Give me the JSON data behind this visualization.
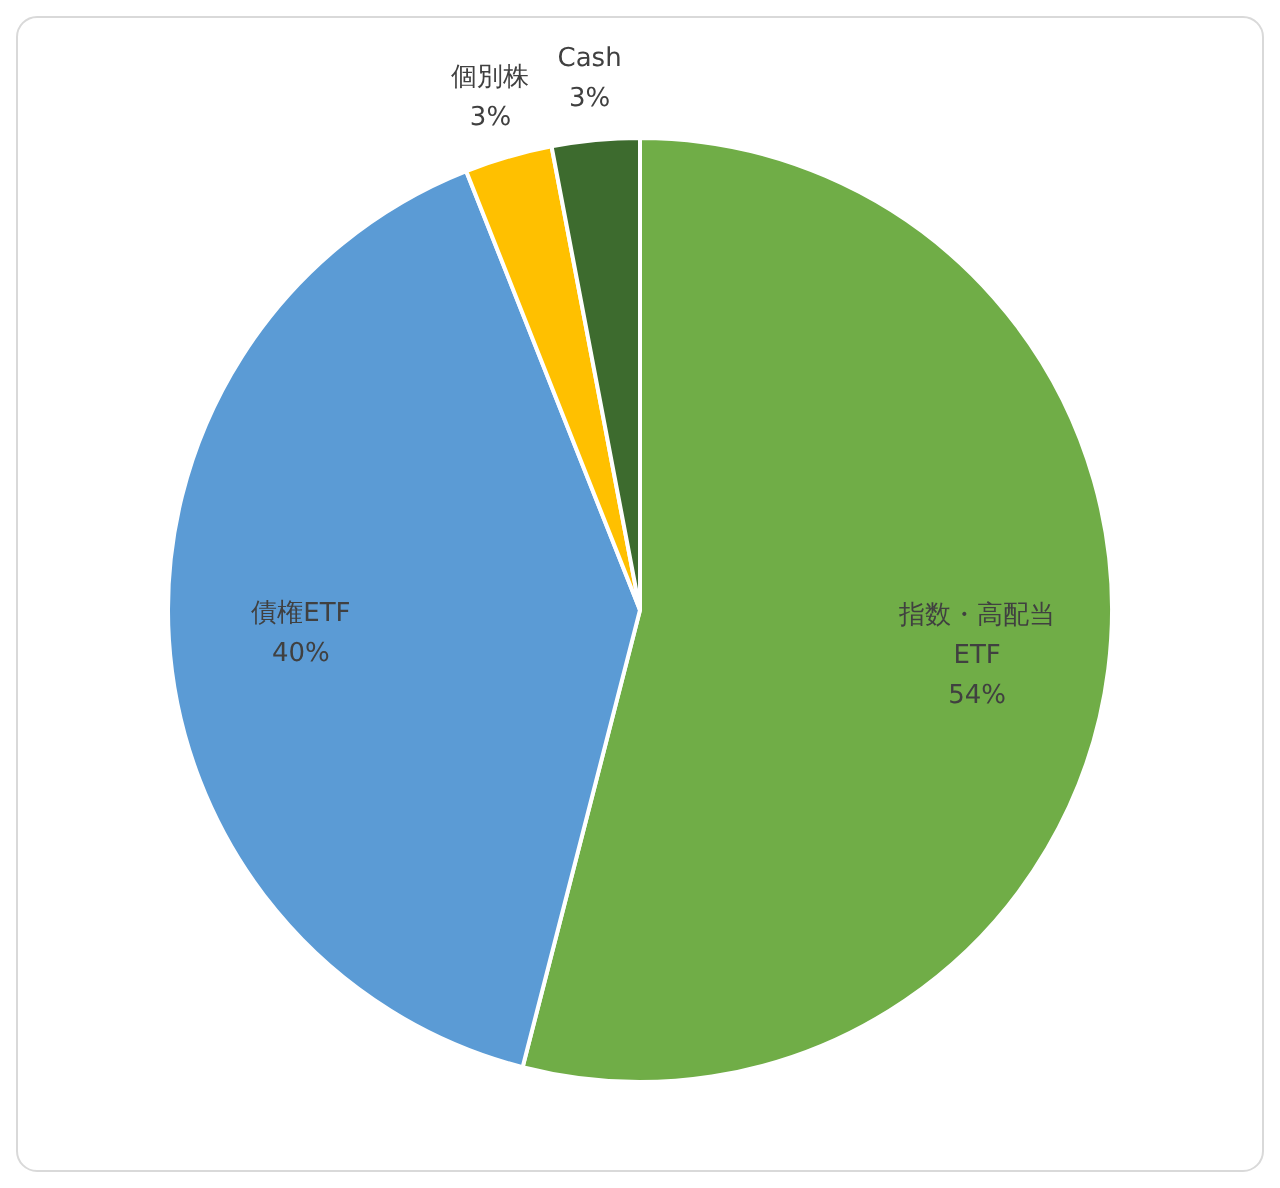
{
  "chart_data": {
    "type": "pie",
    "categories": [
      "指数・高配当ETF",
      "債権ETF",
      "個別株",
      "Cash"
    ],
    "values": [
      54,
      40,
      3,
      3
    ],
    "colors": [
      "#70ad47",
      "#5b9bd5",
      "#ffc000",
      "#3d6b2e"
    ],
    "value_labels": [
      "54%",
      "40%",
      "3%",
      "3%"
    ]
  }
}
